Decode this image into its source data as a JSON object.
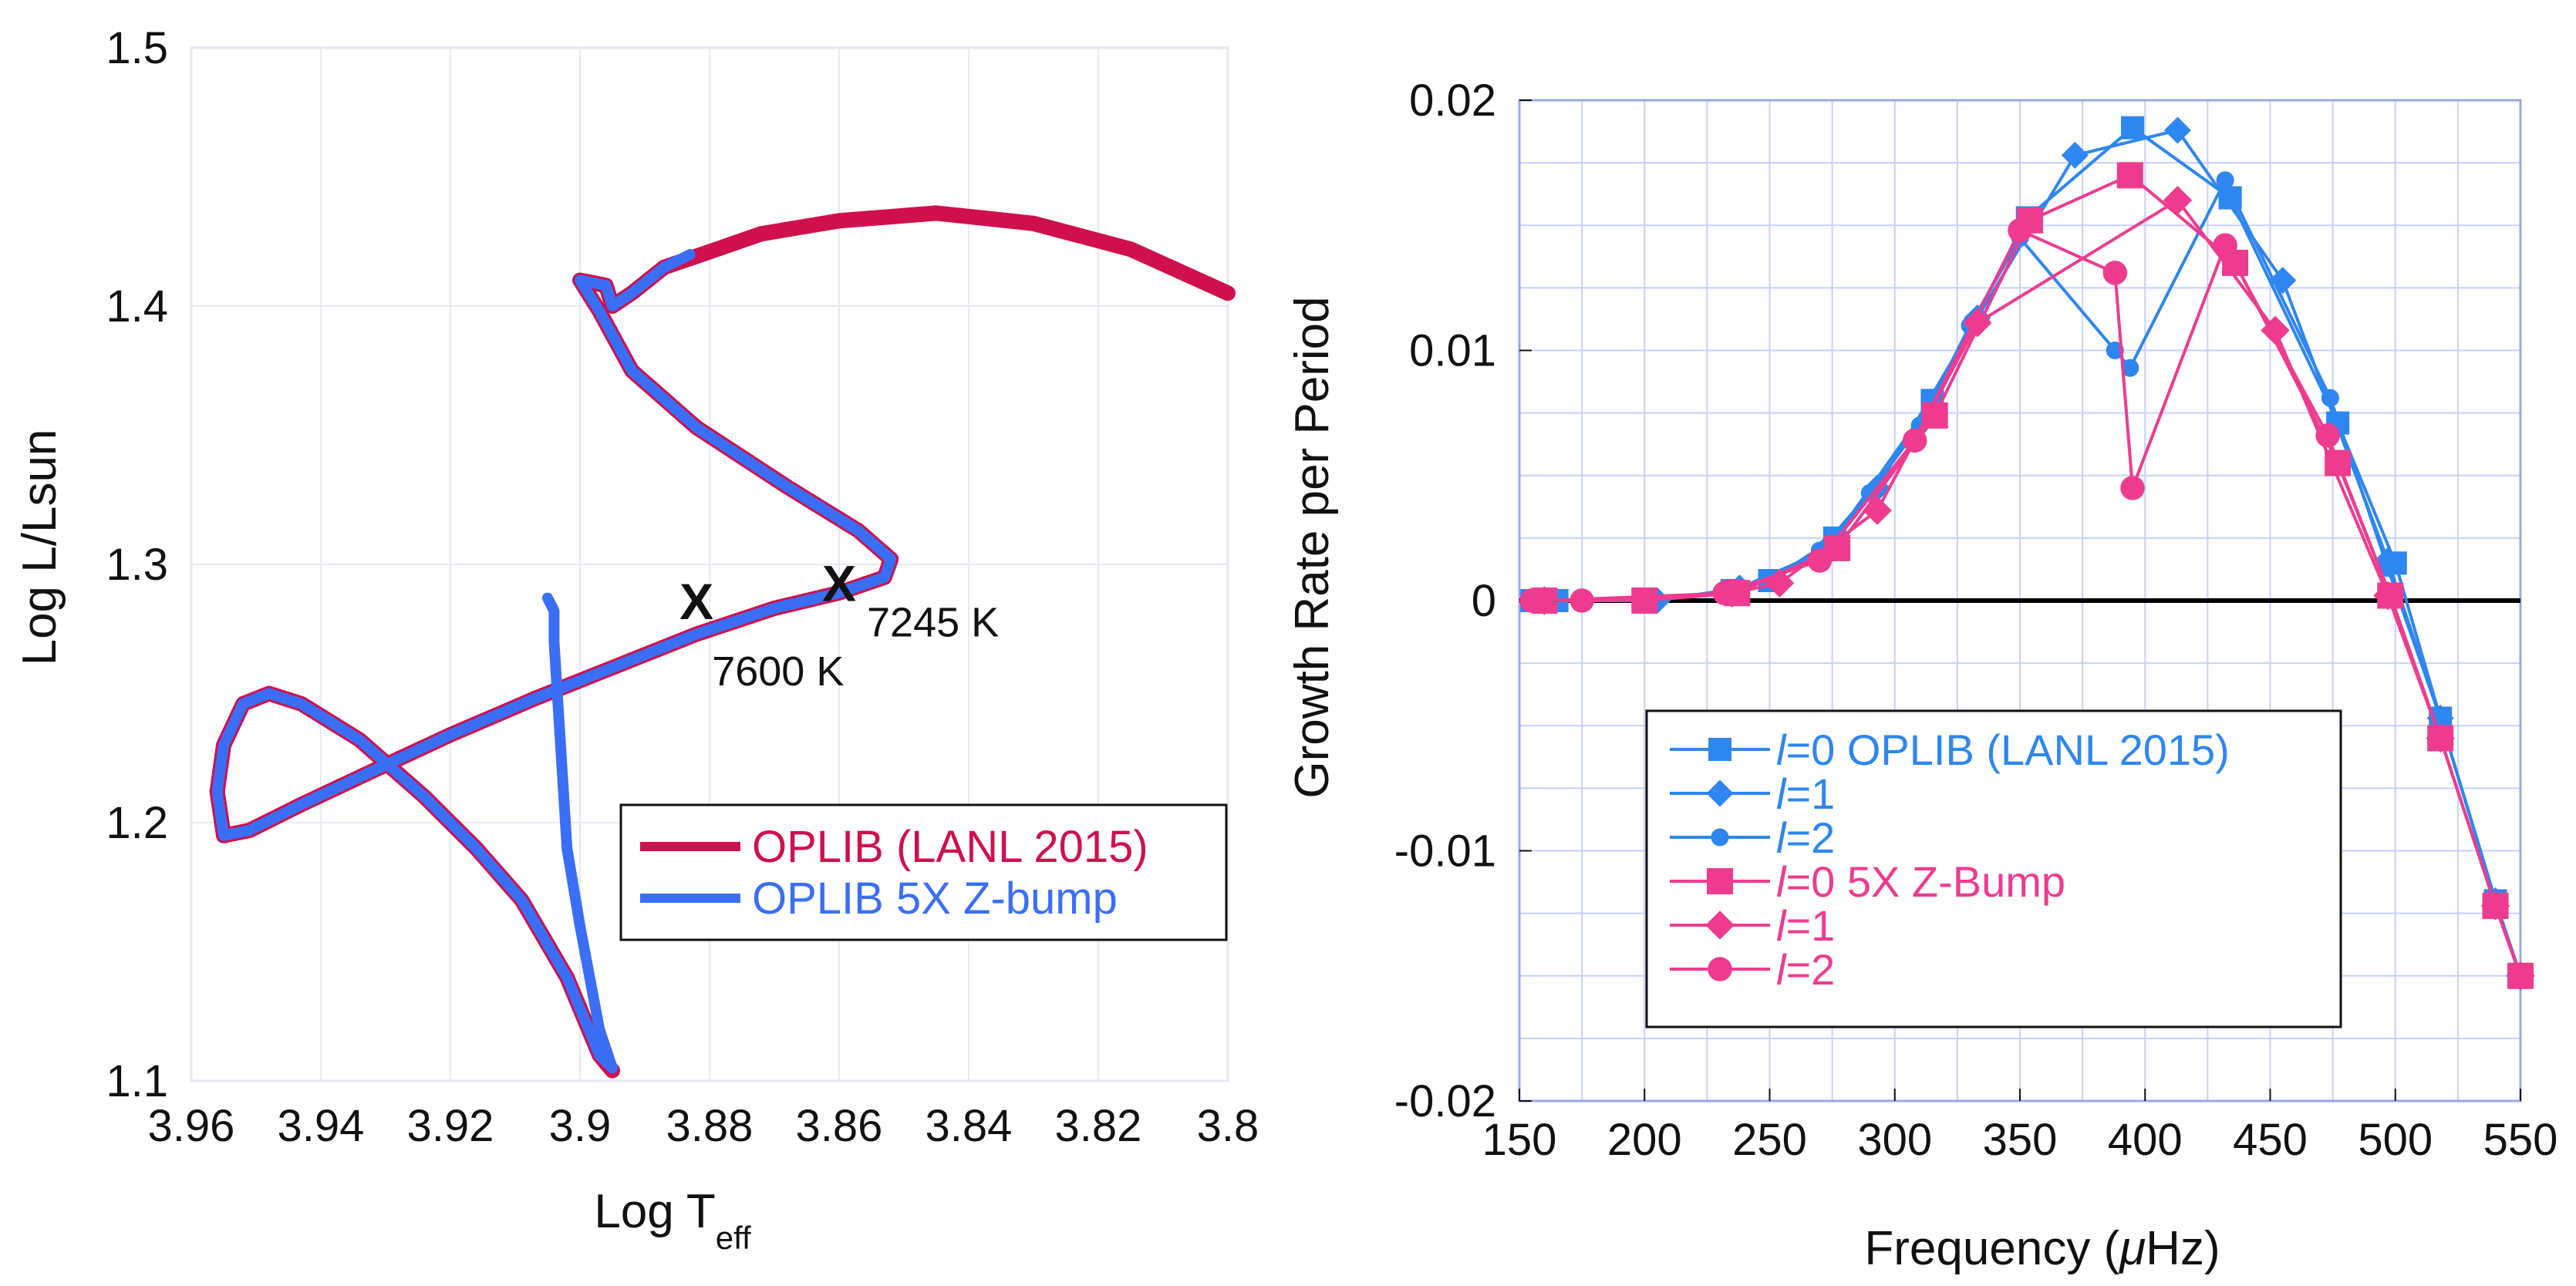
{
  "chart_data": [
    {
      "type": "line",
      "title": "",
      "xlabel": "Log T",
      "xlabel_sub": "eff",
      "ylabel": "Log L/Lsun",
      "xlim": [
        3.96,
        3.8
      ],
      "ylim": [
        1.1,
        1.5
      ],
      "x_ticks": [
        "3.96",
        "3.94",
        "3.92",
        "3.9",
        "3.88",
        "3.86",
        "3.84",
        "3.82",
        "3.8"
      ],
      "y_ticks": [
        "1.1",
        "1.2",
        "1.3",
        "1.4",
        "1.5"
      ],
      "grid": true,
      "legend_position": "lower-right",
      "series": [
        {
          "name": "OPLIB (LANL 2015)",
          "color": "#d0104c",
          "points": [
            [
              3.895,
              1.104
            ],
            [
              3.897,
              1.11
            ],
            [
              3.902,
              1.14
            ],
            [
              3.909,
              1.17
            ],
            [
              3.916,
              1.19
            ],
            [
              3.924,
              1.21
            ],
            [
              3.934,
              1.232
            ],
            [
              3.943,
              1.246
            ],
            [
              3.948,
              1.25
            ],
            [
              3.952,
              1.246
            ],
            [
              3.955,
              1.23
            ],
            [
              3.956,
              1.212
            ],
            [
              3.955,
              1.195
            ],
            [
              3.951,
              1.197
            ],
            [
              3.943,
              1.207
            ],
            [
              3.932,
              1.22
            ],
            [
              3.92,
              1.234
            ],
            [
              3.907,
              1.248
            ],
            [
              3.895,
              1.26
            ],
            [
              3.882,
              1.273
            ],
            [
              3.87,
              1.283
            ],
            [
              3.86,
              1.289
            ],
            [
              3.853,
              1.295
            ],
            [
              3.852,
              1.302
            ],
            [
              3.857,
              1.313
            ],
            [
              3.868,
              1.33
            ],
            [
              3.882,
              1.353
            ],
            [
              3.892,
              1.375
            ],
            [
              3.897,
              1.398
            ],
            [
              3.9,
              1.41
            ],
            [
              3.896,
              1.408
            ],
            [
              3.895,
              1.4
            ],
            [
              3.892,
              1.405
            ],
            [
              3.887,
              1.415
            ],
            [
              3.88,
              1.421
            ],
            [
              3.872,
              1.428
            ],
            [
              3.86,
              1.433
            ],
            [
              3.845,
              1.436
            ],
            [
              3.83,
              1.432
            ],
            [
              3.815,
              1.422
            ],
            [
              3.8,
              1.405
            ]
          ]
        },
        {
          "name": "OPLIB 5X Z-bump",
          "color": "#3a6ef5",
          "points": [
            [
              3.905,
              1.287
            ],
            [
              3.904,
              1.282
            ],
            [
              3.904,
              1.27
            ],
            [
              3.903,
              1.23
            ],
            [
              3.902,
              1.19
            ],
            [
              3.9,
              1.16
            ],
            [
              3.897,
              1.12
            ],
            [
              3.895,
              1.105
            ],
            [
              3.897,
              1.11
            ],
            [
              3.902,
              1.14
            ],
            [
              3.909,
              1.17
            ],
            [
              3.916,
              1.19
            ],
            [
              3.924,
              1.21
            ],
            [
              3.934,
              1.232
            ],
            [
              3.943,
              1.246
            ],
            [
              3.948,
              1.25
            ],
            [
              3.952,
              1.246
            ],
            [
              3.955,
              1.23
            ],
            [
              3.956,
              1.212
            ],
            [
              3.955,
              1.195
            ],
            [
              3.951,
              1.197
            ],
            [
              3.943,
              1.207
            ],
            [
              3.932,
              1.22
            ],
            [
              3.92,
              1.234
            ],
            [
              3.907,
              1.248
            ],
            [
              3.895,
              1.26
            ],
            [
              3.882,
              1.273
            ],
            [
              3.87,
              1.283
            ],
            [
              3.86,
              1.289
            ],
            [
              3.853,
              1.295
            ],
            [
              3.852,
              1.302
            ],
            [
              3.857,
              1.313
            ],
            [
              3.868,
              1.33
            ],
            [
              3.882,
              1.353
            ],
            [
              3.892,
              1.375
            ],
            [
              3.897,
              1.398
            ],
            [
              3.9,
              1.41
            ],
            [
              3.896,
              1.408
            ],
            [
              3.895,
              1.4
            ],
            [
              3.892,
              1.405
            ],
            [
              3.887,
              1.415
            ],
            [
              3.883,
              1.42
            ]
          ]
        }
      ],
      "markers": [
        {
          "symbol": "x",
          "x": 3.882,
          "y": 1.286,
          "label": "7600 K",
          "label_side": "below"
        },
        {
          "symbol": "x",
          "x": 3.86,
          "y": 1.293,
          "label": "7245 K",
          "label_side": "right"
        }
      ]
    },
    {
      "type": "line",
      "title": "",
      "xlabel": "Frequency (",
      "xlabel_mu": "μ",
      "xlabel_tail": "Hz)",
      "ylabel": "Growth Rate per Period",
      "xlim": [
        150,
        550
      ],
      "ylim": [
        -0.02,
        0.02
      ],
      "x_ticks": [
        "150",
        "200",
        "250",
        "300",
        "350",
        "400",
        "450",
        "500",
        "550"
      ],
      "y_ticks": [
        "-0.02",
        "-0.01",
        "0",
        "0.01",
        "0.02"
      ],
      "grid": true,
      "legend_position": "lower-left",
      "series": [
        {
          "name": "l=0 OPLIB (LANL 2015)",
          "l_prefix": "l",
          "l_rest": "=0 OPLIB (LANL 2015)",
          "color": "#2e86f0",
          "marker": "square",
          "x": [
            155,
            160,
            165,
            200,
            235,
            250,
            276,
            315,
            353,
            395,
            434,
            477,
            500,
            518,
            540,
            550
          ],
          "y": [
            0,
            0,
            0,
            0,
            0.0004,
            0.0008,
            0.0025,
            0.008,
            0.0153,
            0.0189,
            0.0161,
            0.0071,
            0.0015,
            -0.0047,
            -0.012,
            -0.015
          ]
        },
        {
          "name": "l=1",
          "l_prefix": "l",
          "l_rest": "=1",
          "color": "#2e86f0",
          "marker": "diamond",
          "x": [
            160,
            205,
            238,
            272,
            293,
            333,
            372,
            413,
            455,
            497,
            518,
            540,
            550
          ],
          "y": [
            0,
            0,
            0.0005,
            0.002,
            0.0045,
            0.0113,
            0.0178,
            0.0188,
            0.0128,
            0.0016,
            -0.0047,
            -0.012,
            -0.015
          ]
        },
        {
          "name": "l=2",
          "l_prefix": "l",
          "l_rest": "=2",
          "color": "#2e86f0",
          "marker": "circle",
          "x": [
            155,
            175,
            200,
            235,
            252,
            270,
            290,
            310,
            330,
            350,
            388,
            394,
            432,
            474,
            497,
            518,
            540,
            550
          ],
          "y": [
            0,
            0,
            0,
            0.0004,
            0.0009,
            0.002,
            0.0043,
            0.007,
            0.011,
            0.0145,
            0.01,
            0.0093,
            0.0168,
            0.0081,
            0.0013,
            -0.0047,
            -0.012,
            -0.015
          ]
        },
        {
          "name": "l=0 5X Z-Bump",
          "l_prefix": "l",
          "l_rest": "=0 5X Z-Bump",
          "color": "#ee3b8f",
          "marker": "square",
          "x": [
            160,
            200,
            237,
            277,
            316,
            354,
            394,
            436,
            477,
            498,
            518,
            540,
            550
          ],
          "y": [
            0,
            0,
            0.0003,
            0.0021,
            0.0074,
            0.0152,
            0.017,
            0.0135,
            0.0055,
            0.0002,
            -0.0055,
            -0.0122,
            -0.015
          ]
        },
        {
          "name": "l=1",
          "l_prefix": "l",
          "l_rest": "=1",
          "color": "#ee3b8f",
          "marker": "diamond",
          "x": [
            160,
            235,
            254,
            293,
            333,
            413,
            452,
            497,
            518,
            540,
            550
          ],
          "y": [
            0,
            0.0003,
            0.0007,
            0.0036,
            0.0111,
            0.016,
            0.0108,
            0.0002,
            -0.0055,
            -0.0122,
            -0.015
          ]
        },
        {
          "name": "l=2",
          "l_prefix": "l",
          "l_rest": "=2",
          "color": "#ee3b8f",
          "marker": "circle",
          "x": [
            155,
            175,
            232,
            270,
            308,
            350,
            388,
            395,
            432,
            473,
            498,
            518,
            540,
            550
          ],
          "y": [
            0,
            0,
            0.0003,
            0.0016,
            0.0064,
            0.0148,
            0.0131,
            0.0045,
            0.0142,
            0.0066,
            0.0002,
            -0.0055,
            -0.0122,
            -0.015
          ]
        }
      ]
    }
  ]
}
